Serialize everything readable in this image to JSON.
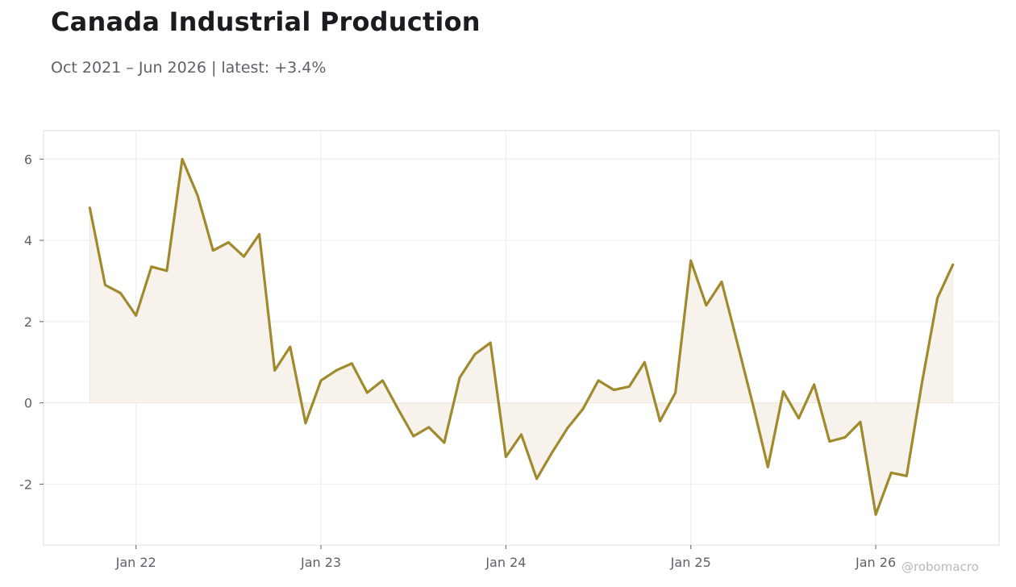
{
  "title": "Canada Industrial Production",
  "subtitle": "Oct 2021 – Jun 2026 | latest: +3.4%",
  "watermark": "@robomacro",
  "colors": {
    "line": "#a08a2e",
    "fill": "#f7f3ec",
    "grid": "#ececec",
    "frame": "#dcdcdc",
    "text": "#5f6069"
  },
  "chart_data": {
    "type": "area",
    "series": [
      {
        "x": [
          "2021-10",
          "2021-11",
          "2021-12",
          "2022-01",
          "2022-02",
          "2022-03",
          "2022-04",
          "2022-05",
          "2022-06",
          "2022-07",
          "2022-08",
          "2022-09",
          "2022-10",
          "2022-11",
          "2022-12",
          "2023-01",
          "2023-02",
          "2023-03",
          "2023-04",
          "2023-05",
          "2023-06",
          "2023-07",
          "2023-08",
          "2023-09",
          "2023-10",
          "2023-11",
          "2023-12",
          "2024-01",
          "2024-02",
          "2024-03",
          "2024-04",
          "2024-05",
          "2024-06",
          "2024-07",
          "2024-08",
          "2024-09",
          "2024-10",
          "2024-11",
          "2024-12",
          "2025-01",
          "2025-02",
          "2025-03",
          "2025-04",
          "2025-05",
          "2025-06",
          "2025-07",
          "2025-08",
          "2025-09",
          "2025-10",
          "2025-11",
          "2025-12",
          "2026-01",
          "2026-02",
          "2026-03",
          "2026-04",
          "2026-05",
          "2026-06"
        ],
        "values": [
          4.8,
          2.9,
          2.7,
          2.15,
          3.35,
          3.25,
          6.0,
          5.1,
          3.75,
          3.95,
          3.6,
          4.15,
          0.8,
          1.38,
          -0.5,
          0.55,
          0.8,
          0.97,
          0.25,
          0.55,
          -0.15,
          -0.82,
          -0.6,
          -0.98,
          0.62,
          1.2,
          1.48,
          -1.33,
          -0.78,
          -1.87,
          -1.22,
          -0.62,
          -0.15,
          0.55,
          0.32,
          0.4,
          1.0,
          -0.45,
          0.25,
          3.5,
          2.4,
          2.98,
          1.5,
          0.0,
          -1.58,
          0.28,
          -0.38,
          0.45,
          -0.95,
          -0.85,
          -0.47,
          -2.75,
          -1.72,
          -1.8,
          0.5,
          2.58,
          3.4
        ]
      }
    ],
    "ylim": [
      -3.5,
      6.7
    ],
    "yticks": [
      -2,
      0,
      2,
      4,
      6
    ],
    "ytick_labels": [
      "-2",
      "0",
      "2",
      "4",
      "6"
    ],
    "xticks": [
      {
        "date": "2022-01",
        "label": "Jan 22"
      },
      {
        "date": "2023-01",
        "label": "Jan 23"
      },
      {
        "date": "2024-01",
        "label": "Jan 24"
      },
      {
        "date": "2025-01",
        "label": "Jan 25"
      },
      {
        "date": "2026-01",
        "label": "Jan 26"
      }
    ],
    "xlim": [
      "2021-07",
      "2026-09"
    ],
    "grid": true,
    "legend": "none"
  }
}
